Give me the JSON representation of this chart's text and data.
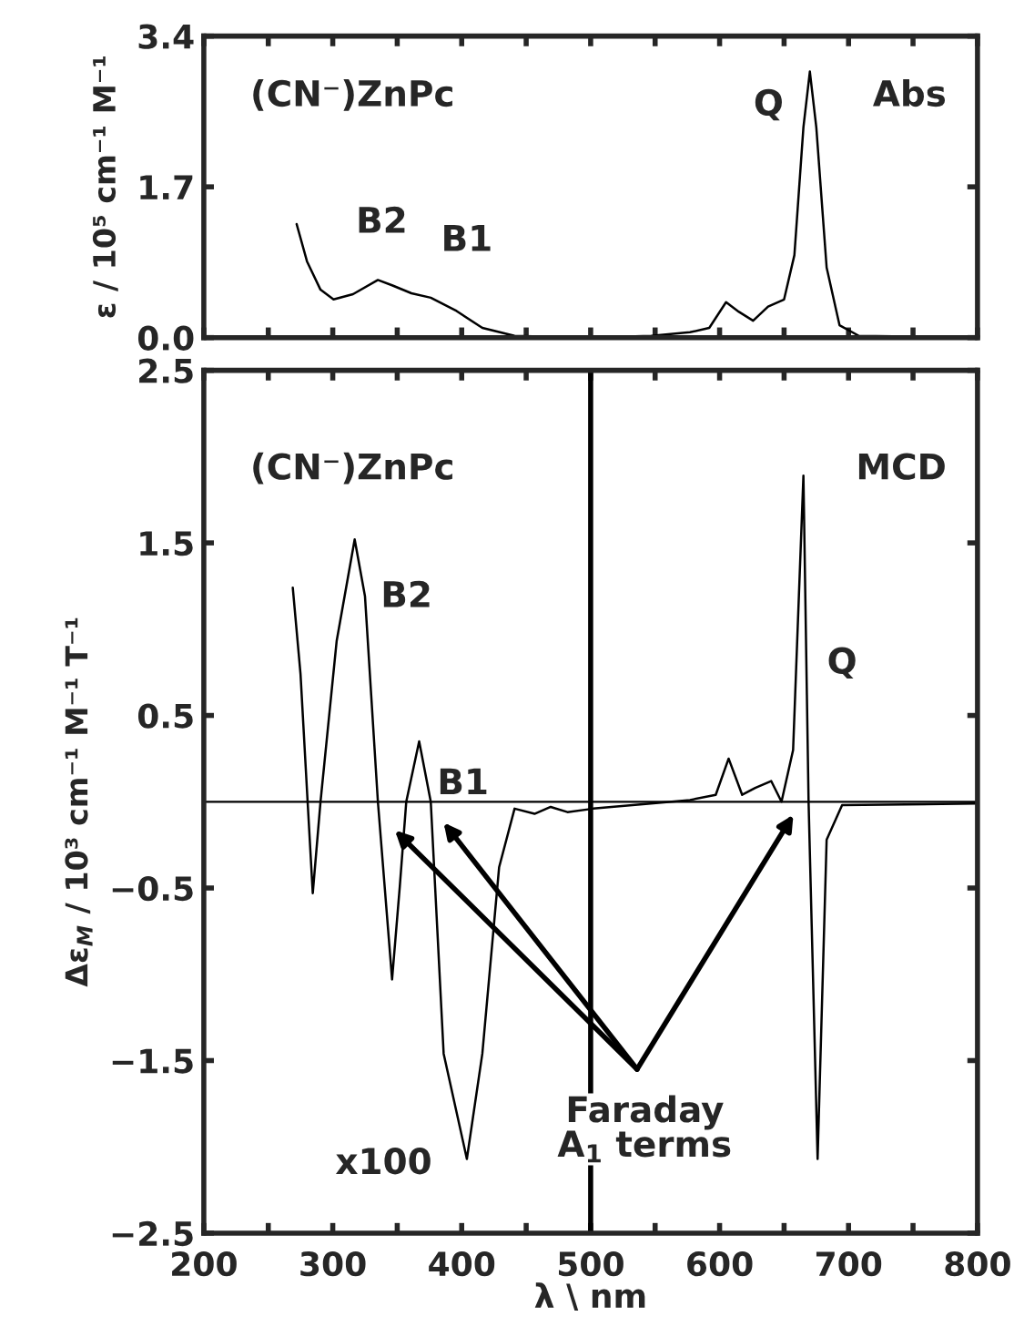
{
  "chart_data": [
    {
      "type": "line",
      "ylabel": "ε / 10⁵ cm⁻¹ M⁻¹",
      "xlim": [
        200,
        800
      ],
      "ylim": [
        0,
        3.4
      ],
      "xticks": [
        {
          "value": 200,
          "label": null
        },
        {
          "value": 250,
          "label": null
        },
        {
          "value": 300,
          "label": null
        },
        {
          "value": 350,
          "label": null
        },
        {
          "value": 400,
          "label": null
        },
        {
          "value": 450,
          "label": null
        },
        {
          "value": 500,
          "label": null
        },
        {
          "value": 550,
          "label": null
        },
        {
          "value": 600,
          "label": null
        },
        {
          "value": 650,
          "label": null
        },
        {
          "value": 700,
          "label": null
        },
        {
          "value": 750,
          "label": null
        },
        {
          "value": 800,
          "label": null
        }
      ],
      "yticks": [
        {
          "value": 0,
          "label": "0.0"
        },
        {
          "value": 1.7,
          "label": "1.7"
        },
        {
          "value": 3.4,
          "label": "3.4"
        }
      ],
      "tick_labels": "y",
      "grid": false,
      "legend": false,
      "series": [
        {
          "color": "#000000",
          "x": [
            272,
            280,
            290.5,
            300.6,
            315.7,
            335,
            346,
            361,
            376,
            396,
            416,
            441,
            497,
            547,
            577,
            592,
            605,
            615,
            626,
            637.6,
            650,
            658,
            665,
            670,
            675,
            683,
            693,
            708,
            798
          ],
          "values": [
            1.28,
            0.86,
            0.54,
            0.43,
            0.49,
            0.65,
            0.59,
            0.5,
            0.45,
            0.3,
            0.11,
            0.02,
            0,
            0.02,
            0.06,
            0.11,
            0.4,
            0.29,
            0.19,
            0.35,
            0.43,
            0.93,
            2.37,
            3.0,
            2.37,
            0.79,
            0.14,
            0.02,
            0
          ]
        }
      ],
      "annotations": [
        "(CN⁻)ZnPc",
        "Abs",
        "B2",
        "B1",
        "Q"
      ]
    },
    {
      "type": "line",
      "xlabel": "λ \\ nm",
      "ylabel": "Δε$_{M}$ / 10³ cm⁻¹ M⁻¹ T⁻¹",
      "xlim": [
        200,
        800
      ],
      "ylim": [
        -2.5,
        2.5
      ],
      "xticks": [
        200,
        {
          "value": 250,
          "label": null
        },
        300,
        {
          "value": 350,
          "label": null
        },
        400,
        {
          "value": 450,
          "label": null
        },
        500,
        {
          "value": 550,
          "label": null
        },
        600,
        {
          "value": 650,
          "label": null
        },
        700,
        {
          "value": 750,
          "label": null
        },
        800
      ],
      "yticks": [
        {
          "value": -2.5,
          "label": "−2.5"
        },
        {
          "value": -1.5,
          "label": "−1.5"
        },
        {
          "value": -0.5,
          "label": "−0.5"
        },
        {
          "value": 0.5,
          "label": "0.5"
        },
        {
          "value": 1.5,
          "label": "1.5"
        },
        {
          "value": 2.5,
          "label": "2.5"
        }
      ],
      "grid": false,
      "legend": false,
      "ref_lines": [
        {
          "axis": "x",
          "value": 500,
          "label": null
        },
        {
          "axis": "y",
          "value": 0,
          "label": null
        }
      ],
      "series": [
        {
          "color": "#000000",
          "x": [
            269,
            275,
            280.5,
            284.5,
            290.5,
            303,
            317,
            325,
            335,
            346,
            352,
            357,
            367,
            376,
            386,
            404,
            416,
            429,
            441,
            456.5,
            469,
            482,
            502,
            577,
            597,
            607,
            617.5,
            627.6,
            640,
            648,
            657,
            665,
            669,
            676,
            683,
            695,
            799
          ],
          "values": [
            1.24,
            0.74,
            0,
            -0.53,
            0,
            0.93,
            1.52,
            1.19,
            0,
            -1.03,
            -0.49,
            0,
            0.35,
            0,
            -1.46,
            -2.07,
            -1.46,
            -0.38,
            -0.04,
            -0.07,
            -0.03,
            -0.06,
            -0.04,
            0.01,
            0.04,
            0.25,
            0.04,
            0.08,
            0.12,
            0,
            0.3,
            1.89,
            0,
            -2.07,
            -0.22,
            -0.02,
            -0.01
          ]
        }
      ],
      "annotations": [
        "(CN⁻)ZnPc",
        "MCD",
        "x100",
        "B2",
        "B1",
        "Q",
        "Faraday\nA$_{1}$ terms"
      ]
    }
  ]
}
